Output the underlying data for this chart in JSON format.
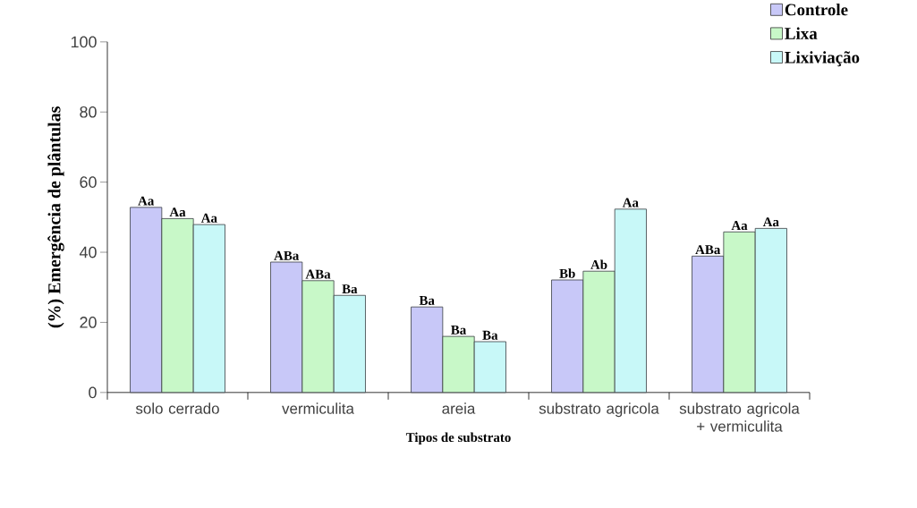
{
  "chart_data": {
    "type": "bar",
    "xlabel": "Tipos de substrato",
    "ylabel": "(%) Emergência de plântulas",
    "categories": [
      "solo cerrado",
      "vermiculita",
      "areia",
      "substrato agricola",
      "substrato agricola + vermiculita"
    ],
    "series": [
      {
        "name": "Controle",
        "color": "#c8c8f8",
        "values": [
          52.8,
          37.2,
          24.4,
          32.1,
          38.9
        ],
        "value_labels": [
          "Aa",
          "ABa",
          "Ba",
          "Bb",
          "ABa"
        ]
      },
      {
        "name": "Lixa",
        "color": "#c8f8c8",
        "values": [
          49.6,
          31.9,
          16.0,
          34.6,
          45.8
        ],
        "value_labels": [
          "Aa",
          "ABa",
          "Ba",
          "Ab",
          "Aa"
        ]
      },
      {
        "name": "Lixiviação",
        "color": "#c8f8f8",
        "values": [
          47.9,
          27.7,
          14.5,
          52.3,
          46.8
        ],
        "value_labels": [
          "Aa",
          "Ba",
          "Ba",
          "Aa",
          "Aa"
        ]
      }
    ],
    "ylim": [
      0,
      100
    ],
    "yticks": [
      0,
      20,
      40,
      60,
      80,
      100
    ],
    "grid": false,
    "legend": "top right"
  }
}
